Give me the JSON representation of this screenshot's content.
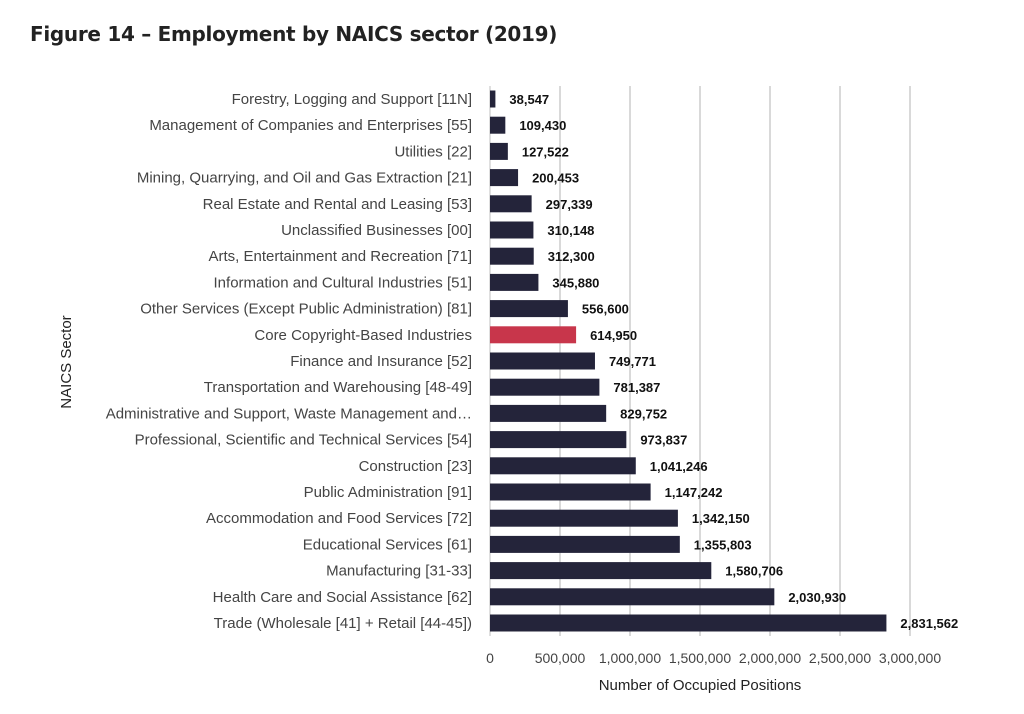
{
  "chart_data": {
    "type": "bar",
    "orientation": "horizontal",
    "title": "Figure 14 – Employment by NAICS sector (2019)",
    "xlabel": "Number of Occupied Positions",
    "ylabel": "NAICS Sector",
    "xlim": [
      0,
      3000000
    ],
    "xticks": [
      "0",
      "500,000",
      "1,000,000",
      "1,500,000",
      "2,000,000",
      "2,500,000",
      "3,000,000"
    ],
    "grid": true,
    "colors": {
      "default": "#24243a",
      "highlight": "#c8364b"
    },
    "categories": [
      "Forestry, Logging and Support [11N]",
      "Management of Companies and Enterprises [55]",
      "Utilities [22]",
      "Mining, Quarrying, and Oil and Gas Extraction [21]",
      "Real Estate and Rental and Leasing [53]",
      "Unclassified Businesses [00]",
      "Arts, Entertainment and Recreation [71]",
      "Information and Cultural Industries [51]",
      "Other Services (Except Public Administration) [81]",
      "Core Copyright-Based Industries",
      "Finance and Insurance [52]",
      "Transportation and Warehousing [48-49]",
      "Administrative and Support, Waste Management and…",
      "Professional, Scientific and Technical Services [54]",
      "Construction [23]",
      "Public Administration [91]",
      "Accommodation and Food Services [72]",
      "Educational Services [61]",
      "Manufacturing [31-33]",
      "Health Care and Social Assistance [62]",
      "Trade (Wholesale [41] + Retail [44-45])"
    ],
    "values": [
      38547,
      109430,
      127522,
      200453,
      297339,
      310148,
      312300,
      345880,
      556600,
      614950,
      749771,
      781387,
      829752,
      973837,
      1041246,
      1147242,
      1342150,
      1355803,
      1580706,
      2030930,
      2831562
    ],
    "data_labels": [
      "38,547",
      "109,430",
      "127,522",
      "200,453",
      "297,339",
      "310,148",
      "312,300",
      "345,880",
      "556,600",
      "614,950",
      "749,771",
      "781,387",
      "829,752",
      "973,837",
      "1,041,246",
      "1,147,242",
      "1,342,150",
      "1,355,803",
      "1,580,706",
      "2,030,930",
      "2,831,562"
    ],
    "highlight_index": 9
  }
}
